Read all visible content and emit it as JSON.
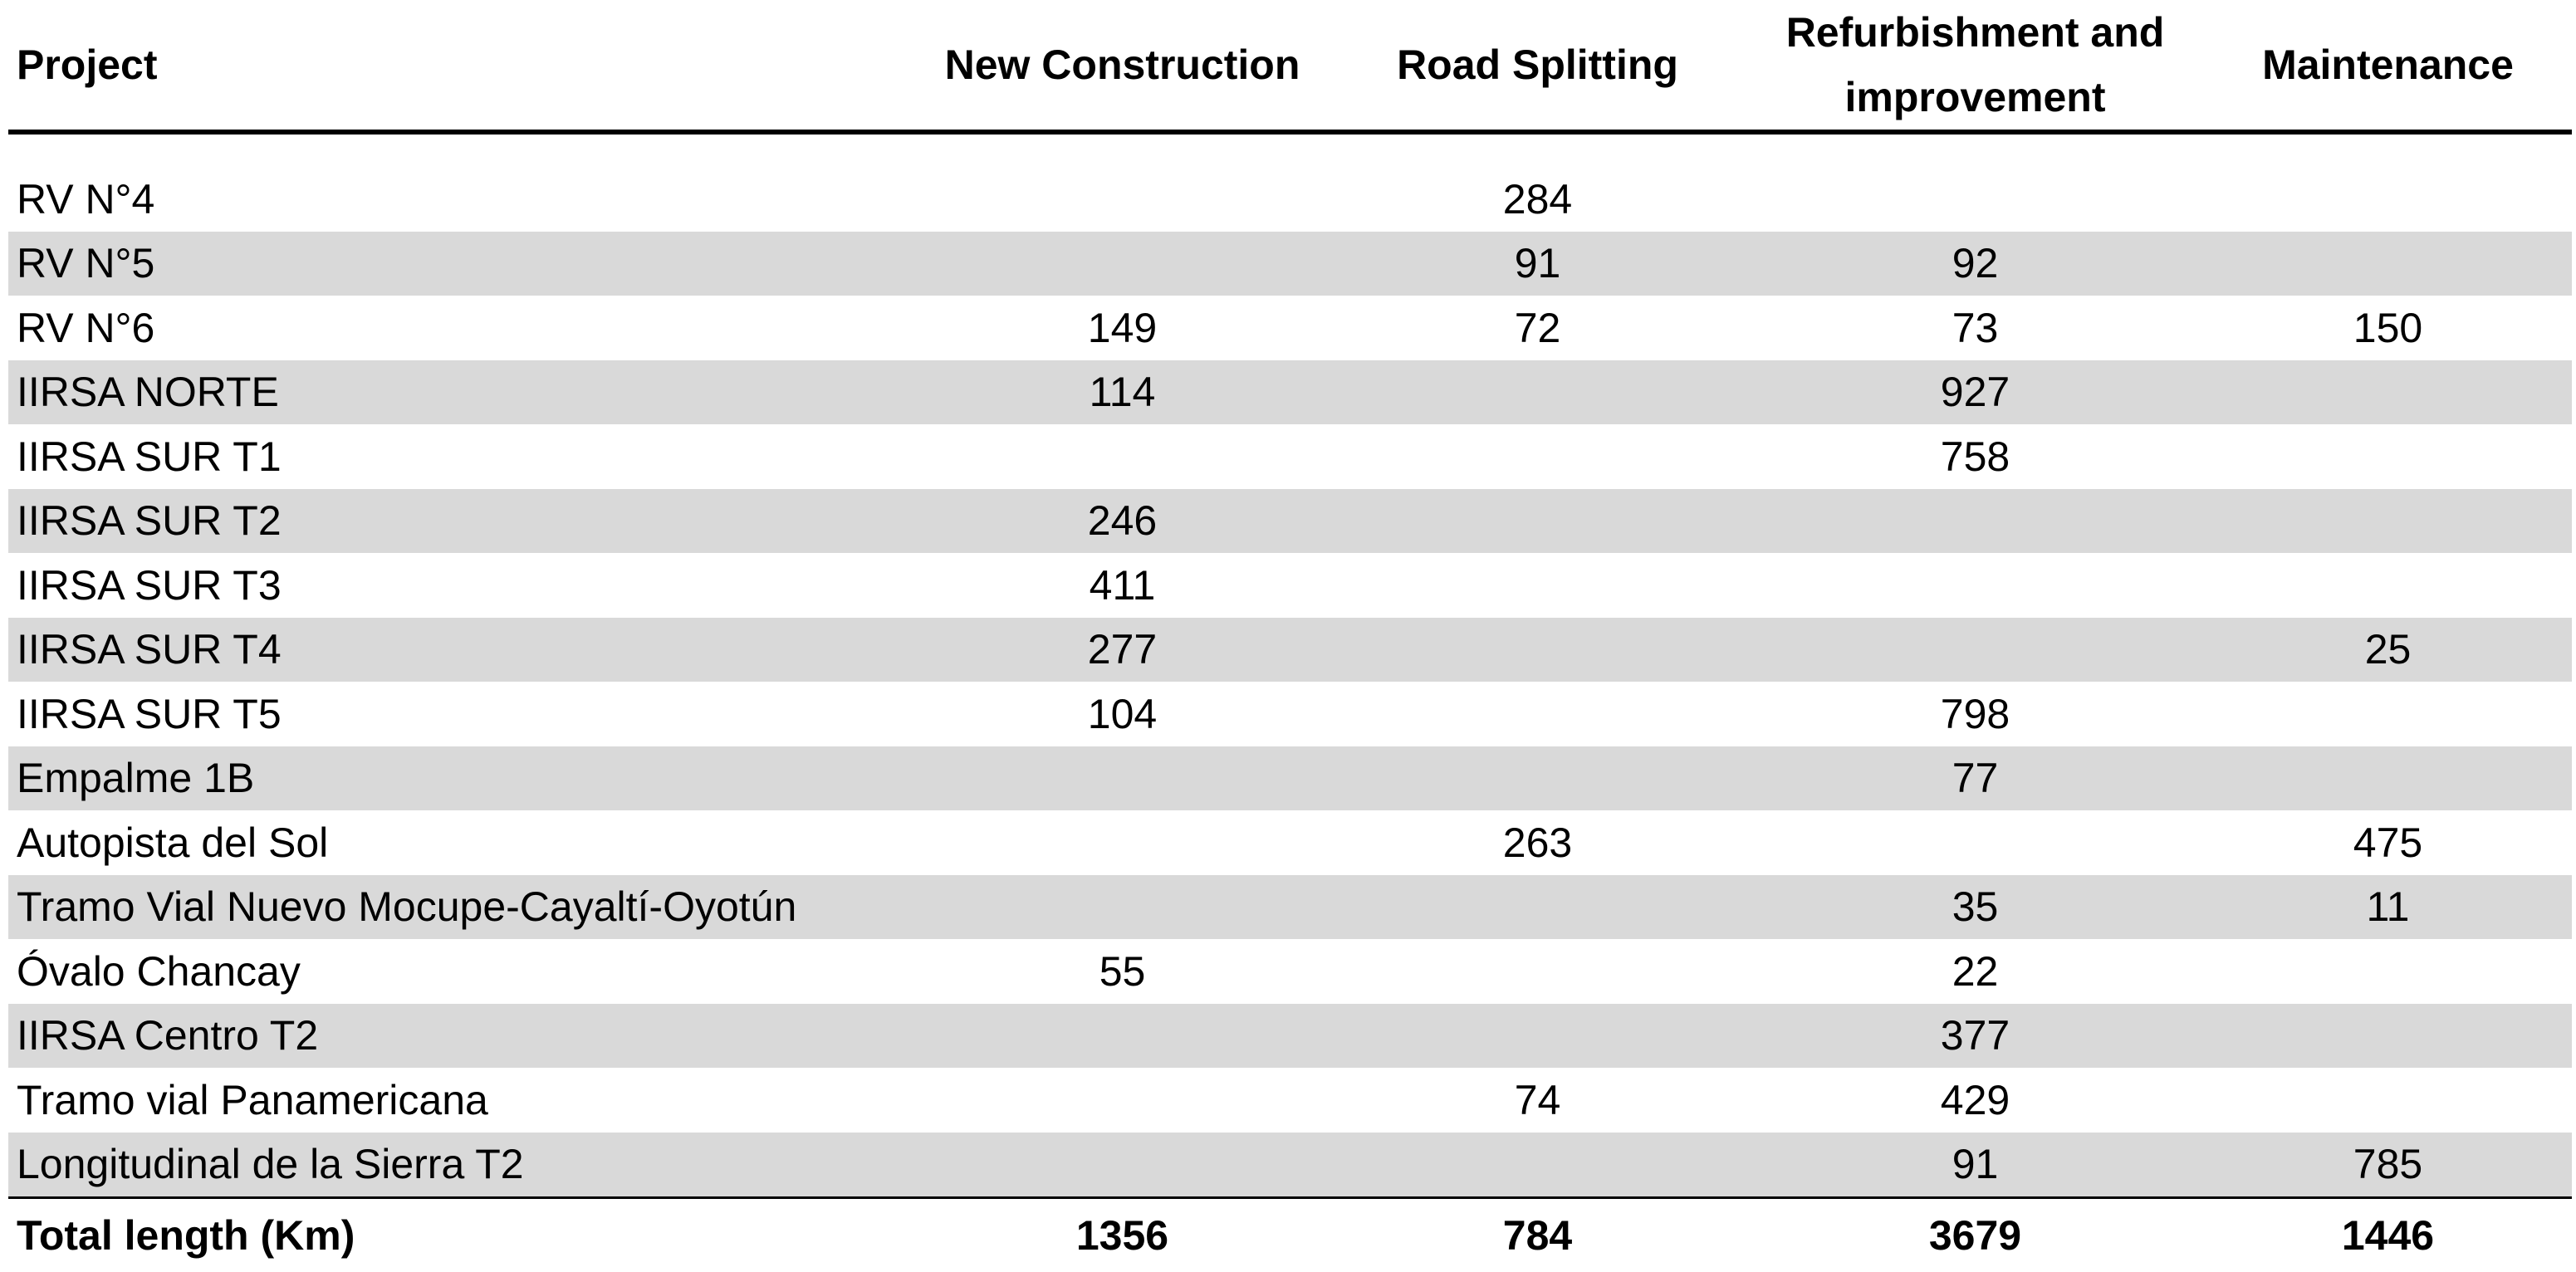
{
  "table": {
    "columns": [
      "Project",
      "New Construction",
      "Road Splitting",
      "Refurbishment and improvement",
      "Maintenance"
    ],
    "rows": [
      [
        "RV N°4",
        null,
        284,
        null,
        null
      ],
      [
        "RV N°5",
        null,
        91,
        92,
        null
      ],
      [
        "RV N°6",
        149,
        72,
        73,
        150
      ],
      [
        "IIRSA NORTE",
        114,
        null,
        927,
        null
      ],
      [
        "IIRSA SUR T1",
        null,
        null,
        758,
        null
      ],
      [
        "IIRSA SUR T2",
        246,
        null,
        null,
        null
      ],
      [
        "IIRSA SUR T3",
        411,
        null,
        null,
        null
      ],
      [
        "IIRSA SUR T4",
        277,
        null,
        null,
        25
      ],
      [
        "IIRSA SUR T5",
        104,
        null,
        798,
        null
      ],
      [
        "Empalme 1B",
        null,
        null,
        77,
        null
      ],
      [
        "Autopista del Sol",
        null,
        263,
        null,
        475
      ],
      [
        "Tramo Vial Nuevo Mocupe-Cayaltí-Oyotún",
        null,
        null,
        35,
        11
      ],
      [
        "Óvalo Chancay",
        55,
        null,
        22,
        null
      ],
      [
        "IIRSA Centro T2",
        null,
        null,
        377,
        null
      ],
      [
        "Tramo vial Panamericana",
        null,
        74,
        429,
        null
      ],
      [
        "Longitudinal de la Sierra T2",
        null,
        null,
        91,
        785
      ]
    ],
    "totals": [
      "Total length (Km)",
      1356,
      784,
      3679,
      1446
    ]
  }
}
